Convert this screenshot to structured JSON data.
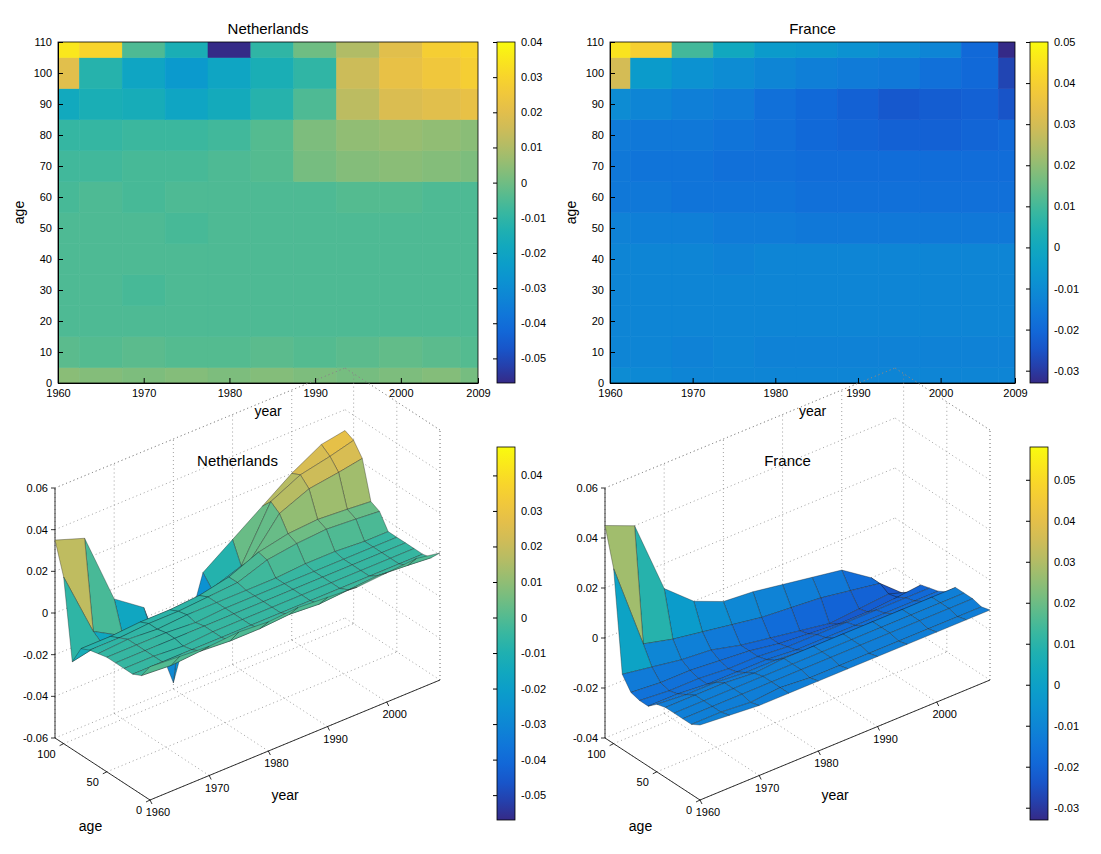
{
  "chart_data": [
    {
      "type": "heatmap",
      "title": "Netherlands",
      "x_label": "year",
      "y_label": "age",
      "x": [
        1960,
        1965,
        1970,
        1975,
        1980,
        1985,
        1990,
        1995,
        2000,
        2005,
        2009
      ],
      "y": [
        0,
        10,
        20,
        30,
        40,
        50,
        60,
        70,
        80,
        90,
        100,
        110
      ],
      "values": [
        [
          0.004,
          0.003,
          0.002,
          0.003,
          0.002,
          0.003,
          0.002,
          0.001,
          0.002,
          0.003,
          0.001
        ],
        [
          -0.003,
          -0.004,
          -0.003,
          -0.004,
          -0.004,
          -0.003,
          -0.004,
          -0.003,
          -0.002,
          -0.003,
          -0.004
        ],
        [
          -0.005,
          -0.005,
          -0.005,
          -0.005,
          -0.005,
          -0.005,
          -0.005,
          -0.005,
          -0.005,
          -0.005,
          -0.005
        ],
        [
          -0.005,
          -0.005,
          -0.006,
          -0.005,
          -0.005,
          -0.005,
          -0.005,
          -0.005,
          -0.005,
          -0.005,
          -0.005
        ],
        [
          -0.005,
          -0.005,
          -0.005,
          -0.005,
          -0.005,
          -0.005,
          -0.005,
          -0.005,
          -0.005,
          -0.005,
          -0.005
        ],
        [
          -0.005,
          -0.005,
          -0.005,
          -0.006,
          -0.005,
          -0.005,
          -0.005,
          -0.005,
          -0.005,
          -0.005,
          -0.005
        ],
        [
          -0.006,
          -0.005,
          -0.006,
          -0.005,
          -0.005,
          -0.005,
          -0.005,
          -0.004,
          -0.004,
          -0.005,
          -0.005
        ],
        [
          -0.007,
          -0.007,
          -0.006,
          -0.006,
          -0.005,
          -0.004,
          0.001,
          0.003,
          0.004,
          0.003,
          0.002
        ],
        [
          -0.009,
          -0.009,
          -0.008,
          -0.008,
          -0.007,
          -0.004,
          0.002,
          0.005,
          0.006,
          0.005,
          0.004
        ],
        [
          -0.018,
          -0.015,
          -0.016,
          -0.02,
          -0.017,
          -0.012,
          -0.005,
          0.012,
          0.018,
          0.02,
          0.022
        ],
        [
          0.02,
          -0.012,
          -0.02,
          -0.025,
          -0.02,
          -0.015,
          -0.01,
          0.015,
          0.022,
          0.025,
          0.028
        ],
        [
          0.035,
          0.03,
          -0.005,
          -0.015,
          -0.057,
          -0.01,
          0,
          0.01,
          0.02,
          0.028,
          0.03
        ]
      ],
      "xlim": [
        1960,
        2009
      ],
      "ylim": [
        0,
        110
      ],
      "xticks": [
        1960,
        1970,
        1980,
        1990,
        2000,
        2009
      ],
      "yticks": [
        0,
        10,
        20,
        30,
        40,
        50,
        60,
        70,
        80,
        90,
        100,
        110
      ],
      "color_range": [
        -0.057,
        0.04
      ],
      "color_ticks": [
        -0.05,
        -0.04,
        -0.03,
        -0.02,
        -0.01,
        0,
        0.01,
        0.02,
        0.03,
        0.04
      ]
    },
    {
      "type": "heatmap",
      "title": "France",
      "x_label": "year",
      "y_label": "age",
      "x": [
        1960,
        1965,
        1970,
        1975,
        1980,
        1985,
        1990,
        1995,
        2000,
        2005,
        2009
      ],
      "y": [
        0,
        10,
        20,
        30,
        40,
        50,
        60,
        70,
        80,
        90,
        100,
        110
      ],
      "values": [
        [
          -0.01,
          -0.011,
          -0.012,
          -0.012,
          -0.012,
          -0.012,
          -0.012,
          -0.012,
          -0.012,
          -0.012,
          -0.012
        ],
        [
          -0.012,
          -0.012,
          -0.013,
          -0.012,
          -0.013,
          -0.013,
          -0.013,
          -0.013,
          -0.013,
          -0.013,
          -0.013
        ],
        [
          -0.012,
          -0.012,
          -0.012,
          -0.012,
          -0.012,
          -0.012,
          -0.012,
          -0.012,
          -0.012,
          -0.012,
          -0.012
        ],
        [
          -0.012,
          -0.012,
          -0.012,
          -0.012,
          -0.012,
          -0.012,
          -0.012,
          -0.012,
          -0.012,
          -0.012,
          -0.012
        ],
        [
          -0.012,
          -0.012,
          -0.012,
          -0.013,
          -0.012,
          -0.012,
          -0.012,
          -0.012,
          -0.012,
          -0.012,
          -0.012
        ],
        [
          -0.013,
          -0.014,
          -0.014,
          -0.015,
          -0.015,
          -0.016,
          -0.016,
          -0.016,
          -0.016,
          -0.016,
          -0.016
        ],
        [
          -0.016,
          -0.016,
          -0.017,
          -0.017,
          -0.017,
          -0.018,
          -0.018,
          -0.018,
          -0.018,
          -0.018,
          -0.018
        ],
        [
          -0.016,
          -0.017,
          -0.017,
          -0.018,
          -0.018,
          -0.019,
          -0.019,
          -0.019,
          -0.019,
          -0.019,
          -0.019
        ],
        [
          -0.015,
          -0.016,
          -0.016,
          -0.017,
          -0.018,
          -0.02,
          -0.021,
          -0.022,
          -0.022,
          -0.021,
          -0.02
        ],
        [
          -0.01,
          -0.012,
          -0.014,
          -0.015,
          -0.018,
          -0.02,
          -0.022,
          -0.024,
          -0.023,
          -0.022,
          -0.025
        ],
        [
          0.03,
          -0.005,
          -0.008,
          -0.01,
          -0.012,
          -0.014,
          -0.015,
          -0.016,
          -0.018,
          -0.02,
          -0.028
        ],
        [
          0.045,
          0.04,
          0.01,
          0,
          -0.005,
          -0.006,
          -0.008,
          -0.01,
          -0.012,
          -0.02,
          -0.033
        ]
      ],
      "xlim": [
        1960,
        2009
      ],
      "ylim": [
        0,
        110
      ],
      "xticks": [
        1960,
        1970,
        1980,
        1990,
        2000,
        2009
      ],
      "yticks": [
        0,
        10,
        20,
        30,
        40,
        50,
        60,
        70,
        80,
        90,
        100,
        110
      ],
      "color_range": [
        -0.033,
        0.05
      ],
      "color_ticks": [
        -0.03,
        -0.02,
        -0.01,
        0,
        0.01,
        0.02,
        0.03,
        0.04,
        0.05
      ]
    },
    {
      "type": "surface",
      "title": "Netherlands",
      "x_label": "year",
      "y_label": "age",
      "x": [
        1960,
        1965,
        1970,
        1975,
        1980,
        1985,
        1990,
        1995,
        2000,
        2005,
        2009
      ],
      "y": [
        0,
        10,
        20,
        30,
        40,
        50,
        60,
        70,
        80,
        90,
        100,
        110
      ],
      "values": [
        [
          0.004,
          0.003,
          0.002,
          0.003,
          0.002,
          0.003,
          0.002,
          0.001,
          0.002,
          0.003,
          0.001
        ],
        [
          -0.003,
          -0.004,
          -0.003,
          -0.004,
          -0.004,
          -0.003,
          -0.004,
          -0.003,
          -0.002,
          -0.003,
          -0.004
        ],
        [
          -0.005,
          -0.005,
          -0.005,
          -0.005,
          -0.005,
          -0.005,
          -0.005,
          -0.005,
          -0.005,
          -0.005,
          -0.005
        ],
        [
          -0.005,
          -0.005,
          -0.006,
          -0.005,
          -0.005,
          -0.005,
          -0.005,
          -0.005,
          -0.005,
          -0.005,
          -0.005
        ],
        [
          -0.005,
          -0.005,
          -0.005,
          -0.005,
          -0.005,
          -0.005,
          -0.005,
          -0.005,
          -0.005,
          -0.005,
          -0.005
        ],
        [
          -0.005,
          -0.005,
          -0.005,
          -0.006,
          -0.005,
          -0.005,
          -0.005,
          -0.005,
          -0.005,
          -0.005,
          -0.005
        ],
        [
          -0.006,
          -0.005,
          -0.006,
          -0.005,
          -0.005,
          -0.005,
          -0.005,
          -0.004,
          -0.004,
          -0.005,
          -0.005
        ],
        [
          -0.007,
          -0.007,
          -0.006,
          -0.006,
          -0.005,
          -0.004,
          0.001,
          0.003,
          0.004,
          0.003,
          0.002
        ],
        [
          -0.009,
          -0.009,
          -0.008,
          -0.008,
          -0.007,
          -0.004,
          0.002,
          0.005,
          0.006,
          0.005,
          0.004
        ],
        [
          -0.018,
          -0.015,
          -0.016,
          -0.02,
          -0.017,
          -0.012,
          -0.005,
          0.012,
          0.018,
          0.02,
          0.022
        ],
        [
          0.02,
          -0.012,
          -0.02,
          -0.025,
          -0.02,
          -0.015,
          -0.01,
          0.015,
          0.022,
          0.025,
          0.028
        ],
        [
          0.035,
          0.03,
          -0.005,
          -0.015,
          -0.057,
          -0.01,
          0,
          0.01,
          0.02,
          0.028,
          0.03
        ]
      ],
      "xlim": [
        1960,
        2009
      ],
      "ylim": [
        0,
        110
      ],
      "zlim": [
        -0.06,
        0.06
      ],
      "xticks": [
        1960,
        1970,
        1980,
        1990,
        2000
      ],
      "yticks": [
        0,
        50,
        100
      ],
      "zticks": [
        -0.06,
        -0.04,
        -0.02,
        0,
        0.02,
        0.04,
        0.06
      ],
      "grid": true,
      "color_range": [
        -0.057,
        0.048
      ],
      "color_ticks": [
        -0.05,
        -0.04,
        -0.03,
        -0.02,
        -0.01,
        0,
        0.01,
        0.02,
        0.03,
        0.04
      ]
    },
    {
      "type": "surface",
      "title": "France",
      "x_label": "year",
      "y_label": "age",
      "x": [
        1960,
        1965,
        1970,
        1975,
        1980,
        1985,
        1990,
        1995,
        2000,
        2005,
        2009
      ],
      "y": [
        0,
        10,
        20,
        30,
        40,
        50,
        60,
        70,
        80,
        90,
        100,
        110
      ],
      "values": [
        [
          -0.01,
          -0.011,
          -0.012,
          -0.012,
          -0.012,
          -0.012,
          -0.012,
          -0.012,
          -0.012,
          -0.012,
          -0.012
        ],
        [
          -0.012,
          -0.012,
          -0.013,
          -0.012,
          -0.013,
          -0.013,
          -0.013,
          -0.013,
          -0.013,
          -0.013,
          -0.013
        ],
        [
          -0.012,
          -0.012,
          -0.012,
          -0.012,
          -0.012,
          -0.012,
          -0.012,
          -0.012,
          -0.012,
          -0.012,
          -0.012
        ],
        [
          -0.012,
          -0.012,
          -0.012,
          -0.012,
          -0.012,
          -0.012,
          -0.012,
          -0.012,
          -0.012,
          -0.012,
          -0.012
        ],
        [
          -0.012,
          -0.012,
          -0.012,
          -0.013,
          -0.012,
          -0.012,
          -0.012,
          -0.012,
          -0.012,
          -0.012,
          -0.012
        ],
        [
          -0.013,
          -0.014,
          -0.014,
          -0.015,
          -0.015,
          -0.016,
          -0.016,
          -0.016,
          -0.016,
          -0.016,
          -0.016
        ],
        [
          -0.016,
          -0.016,
          -0.017,
          -0.017,
          -0.017,
          -0.018,
          -0.018,
          -0.018,
          -0.018,
          -0.018,
          -0.018
        ],
        [
          -0.016,
          -0.017,
          -0.017,
          -0.018,
          -0.018,
          -0.019,
          -0.019,
          -0.019,
          -0.019,
          -0.019,
          -0.019
        ],
        [
          -0.015,
          -0.016,
          -0.016,
          -0.017,
          -0.018,
          -0.02,
          -0.021,
          -0.022,
          -0.022,
          -0.021,
          -0.02
        ],
        [
          -0.01,
          -0.012,
          -0.014,
          -0.015,
          -0.018,
          -0.02,
          -0.022,
          -0.024,
          -0.023,
          -0.022,
          -0.025
        ],
        [
          0.03,
          -0.005,
          -0.008,
          -0.01,
          -0.012,
          -0.014,
          -0.015,
          -0.016,
          -0.018,
          -0.02,
          -0.028
        ],
        [
          0.045,
          0.04,
          0.01,
          0,
          -0.005,
          -0.006,
          -0.008,
          -0.01,
          -0.012,
          -0.02,
          -0.033
        ]
      ],
      "xlim": [
        1960,
        2009
      ],
      "ylim": [
        0,
        110
      ],
      "zlim": [
        -0.04,
        0.06
      ],
      "xticks": [
        1960,
        1970,
        1980,
        1990,
        2000
      ],
      "yticks": [
        0,
        50,
        100
      ],
      "zticks": [
        -0.04,
        -0.02,
        0,
        0.02,
        0.04,
        0.06
      ],
      "grid": true,
      "color_range": [
        -0.033,
        0.058
      ],
      "color_ticks": [
        -0.03,
        -0.02,
        -0.01,
        0,
        0.01,
        0.02,
        0.03,
        0.04,
        0.05
      ]
    }
  ]
}
